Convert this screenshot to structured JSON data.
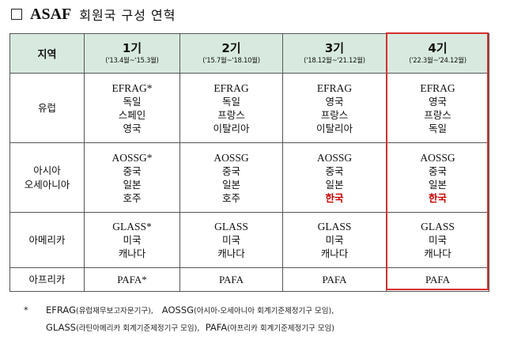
{
  "title": {
    "en": "ASAF",
    "ko": "회원국 구성 연혁"
  },
  "table": {
    "region_header": "지역",
    "terms": [
      {
        "label": "1기",
        "period": "('13.4월~'15.3월)"
      },
      {
        "label": "2기",
        "period": "('15.7월~'18.10월)"
      },
      {
        "label": "3기",
        "period": "('18.12월~'21.12월)"
      },
      {
        "label": "4기",
        "period": "('22.3월~'24.12월)"
      }
    ],
    "rows": {
      "europe": {
        "region": "유럽",
        "cells": [
          [
            "EFRAG*",
            "독일",
            "스페인",
            "영국"
          ],
          [
            "EFRAG",
            "독일",
            "프랑스",
            "이탈리아"
          ],
          [
            "EFRAG",
            "영국",
            "프랑스",
            "이탈리아"
          ],
          [
            "EFRAG",
            "영국",
            "프랑스",
            "독일"
          ]
        ]
      },
      "asia": {
        "region_line1": "아시아",
        "region_line2": "오세아니아",
        "cells": [
          [
            "AOSSG*",
            "중국",
            "일본",
            "호주"
          ],
          [
            "AOSSG",
            "중국",
            "일본",
            "호주"
          ],
          [
            "AOSSG",
            "중국",
            "일본",
            "한국"
          ],
          [
            "AOSSG",
            "중국",
            "일본",
            "한국"
          ]
        ]
      },
      "america": {
        "region": "아메리카",
        "cells": [
          [
            "GLASS*",
            "미국",
            "캐나다"
          ],
          [
            "GLASS",
            "미국",
            "캐나다"
          ],
          [
            "GLASS",
            "미국",
            "캐나다"
          ],
          [
            "GLASS",
            "미국",
            "캐나다"
          ]
        ]
      },
      "africa": {
        "region": "아프리카",
        "cells": [
          [
            "PAFA*"
          ],
          [
            "PAFA"
          ],
          [
            "PAFA"
          ],
          [
            "PAFA"
          ]
        ]
      }
    },
    "highlight_color": "#cc0000"
  },
  "footnote": {
    "marker": "*",
    "efrag_abbr": "EFRAG",
    "efrag_full": "(유럽재무보고자문기구),",
    "aossg_abbr": "AOSSG",
    "aossg_full": "(아시아-오세아니아 회계기준제정기구 모임),",
    "glass_abbr": "GLASS",
    "glass_full": "(라틴아메리카 회계기준제정기구 모임),",
    "pafa_abbr": "PAFA",
    "pafa_full": "(아프리카 회계기준제정기구 모임)"
  }
}
